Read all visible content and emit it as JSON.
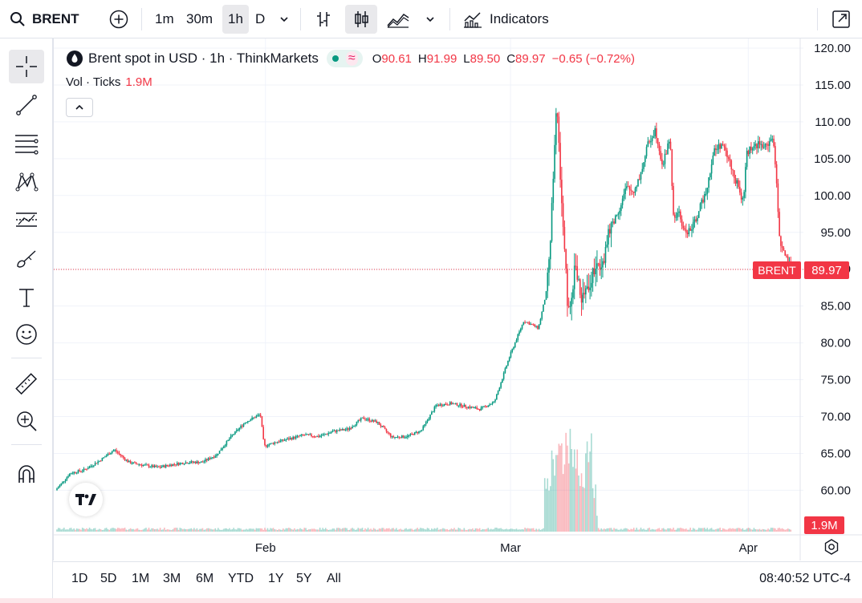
{
  "toolbar": {
    "symbol": "BRENT",
    "timeframes": [
      "1m",
      "30m",
      "1h",
      "D"
    ],
    "active_timeframe": "1h",
    "indicators_label": "Indicators"
  },
  "legend": {
    "title": "Brent spot in USD · 1h · ThinkMarkets",
    "open_key": "O",
    "open": "90.61",
    "high_key": "H",
    "high": "91.99",
    "low_key": "L",
    "low": "89.50",
    "close_key": "C",
    "close": "89.97",
    "change": "−0.65 (−0.72%)",
    "vol_label": "Vol · Ticks",
    "vol_value": "1.9M"
  },
  "price_axis": {
    "labels": [
      "120.00",
      "115.00",
      "110.00",
      "105.00",
      "100.00",
      "95.00",
      "90.00",
      "85.00",
      "80.00",
      "75.00",
      "70.00",
      "65.00",
      "60.00"
    ],
    "current_price_label": "89.97",
    "symbol_tag": "BRENT",
    "volume_tag": "1.9M"
  },
  "time_axis": {
    "labels": [
      "Feb",
      "Mar",
      "Apr"
    ]
  },
  "ranges": [
    "1D",
    "5D",
    "1M",
    "3M",
    "6M",
    "YTD",
    "1Y",
    "5Y",
    "All"
  ],
  "clock": "08:40:52 UTC-4",
  "colors": {
    "up": "#089981",
    "down": "#f23645",
    "grid": "#f0f3fa",
    "accent": "#2962ff"
  },
  "chart_data": {
    "type": "candlestick",
    "title": "Brent spot in USD · 1h · ThinkMarkets",
    "interval": "1h",
    "ylim": [
      58,
      121
    ],
    "y_ticks": [
      60,
      65,
      70,
      75,
      80,
      85,
      90,
      95,
      100,
      105,
      110,
      115,
      120
    ],
    "x_ticks": [
      "Feb",
      "Mar",
      "Apr"
    ],
    "current_price": 89.97,
    "last_bar": {
      "open": 90.61,
      "high": 91.99,
      "low": 89.5,
      "close": 89.97
    },
    "series": [
      {
        "name": "Brent",
        "points": [
          [
            0,
            60.0
          ],
          [
            2,
            62.3
          ],
          [
            4,
            62.8
          ],
          [
            6,
            64.0
          ],
          [
            8,
            65.5
          ],
          [
            10,
            63.8
          ],
          [
            12,
            63.4
          ],
          [
            14,
            63.1
          ],
          [
            16,
            63.5
          ],
          [
            18,
            63.8
          ],
          [
            20,
            63.8
          ],
          [
            22,
            64.8
          ],
          [
            24,
            67.3
          ],
          [
            26,
            69.3
          ],
          [
            28,
            70.3
          ],
          [
            28.5,
            66.0
          ],
          [
            30,
            66.5
          ],
          [
            32,
            67.0
          ],
          [
            34,
            67.5
          ],
          [
            36,
            67.3
          ],
          [
            38,
            68.0
          ],
          [
            40,
            68.3
          ],
          [
            42,
            69.8
          ],
          [
            44,
            69.2
          ],
          [
            46,
            67.2
          ],
          [
            48,
            67.3
          ],
          [
            50,
            68.1
          ],
          [
            52,
            71.5
          ],
          [
            54,
            71.8
          ],
          [
            56,
            71.4
          ],
          [
            58,
            71.0
          ],
          [
            60,
            72.0
          ],
          [
            62,
            78.0
          ],
          [
            64,
            83.0
          ],
          [
            66,
            82.0
          ],
          [
            67,
            86.5
          ],
          [
            67.5,
            91.0
          ],
          [
            68.5,
            112.0
          ],
          [
            69,
            103.0
          ],
          [
            69.5,
            95.0
          ],
          [
            70,
            84.0
          ],
          [
            71,
            90.0
          ],
          [
            72,
            86.0
          ],
          [
            73,
            88.0
          ],
          [
            74,
            90.5
          ],
          [
            75,
            92.0
          ],
          [
            76,
            96.0
          ],
          [
            77,
            98.0
          ],
          [
            78,
            101.0
          ],
          [
            79,
            100.5
          ],
          [
            80,
            103.0
          ],
          [
            81,
            107.0
          ],
          [
            82,
            109.0
          ],
          [
            83,
            104.0
          ],
          [
            84,
            108.0
          ],
          [
            84.5,
            96.0
          ],
          [
            85,
            98.0
          ],
          [
            86,
            95.0
          ],
          [
            87,
            95.5
          ],
          [
            88,
            98.0
          ],
          [
            89,
            101.0
          ],
          [
            90,
            106.0
          ],
          [
            91,
            107.0
          ],
          [
            92,
            105.0
          ],
          [
            93,
            102.0
          ],
          [
            94,
            99.0
          ],
          [
            94.5,
            106.0
          ],
          [
            96,
            107.0
          ],
          [
            97,
            106.5
          ],
          [
            98,
            108.0
          ],
          [
            98.5,
            103.0
          ],
          [
            99,
            93.8
          ],
          [
            100,
            91.0
          ],
          [
            100.5,
            89.97
          ]
        ]
      }
    ],
    "volume": {
      "name": "Vol · Ticks",
      "last": "1.9M",
      "spikes": [
        [
          67,
          0.45
        ],
        [
          68,
          0.7
        ],
        [
          68.6,
          0.8
        ],
        [
          69.2,
          0.6
        ],
        [
          70,
          0.9
        ],
        [
          70.5,
          0.55
        ],
        [
          71,
          0.7
        ],
        [
          72,
          0.5
        ],
        [
          72.6,
          0.85
        ],
        [
          73.2,
          0.4
        ]
      ]
    }
  }
}
